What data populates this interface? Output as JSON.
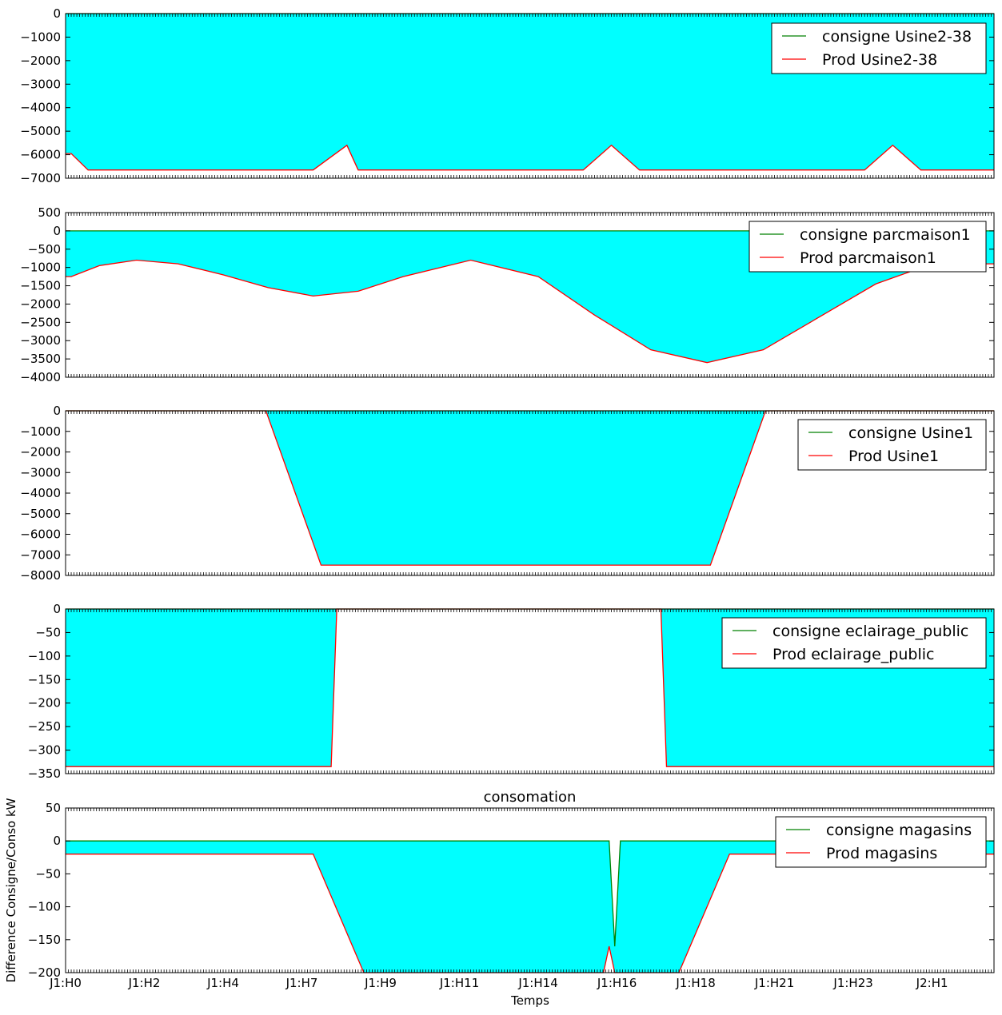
{
  "colors": {
    "fill": "#00ffff",
    "consigne": "#008000",
    "prod": "#ff0000",
    "frame": "#000000"
  },
  "xlabel": "Temps",
  "ylabel": "Difference Consigne/Conso kW",
  "x_tick_labels": [
    "J1:H0",
    "J1:H2",
    "J1:H4",
    "J1:H7",
    "J1:H9",
    "J1:H11",
    "J1:H14",
    "J1:H16",
    "J1:H18",
    "J1:H21",
    "J1:H23",
    "J2:H1"
  ],
  "chart_data": [
    {
      "type": "area",
      "title": "",
      "ylim": [
        -7000,
        0
      ],
      "yticks": [
        0,
        -1000,
        -2000,
        -3000,
        -4000,
        -5000,
        -6000,
        -7000
      ],
      "ytick_labels": [
        "0",
        "−1000",
        "−2000",
        "−3000",
        "−4000",
        "−5000",
        "−6000",
        "−7000"
      ],
      "x_index": [
        0,
        0.5,
        2,
        22,
        25,
        26,
        46,
        48.5,
        51,
        71,
        73.5,
        76,
        82.5
      ],
      "legend_position": "top-right",
      "series": [
        {
          "name": "consigne Usine2-38",
          "values": [
            0,
            0,
            0,
            0,
            0,
            0,
            0,
            0,
            0,
            0,
            0,
            0,
            0
          ]
        },
        {
          "name": "Prod Usine2-38",
          "values": [
            -5950,
            -5950,
            -6650,
            -6650,
            -5600,
            -6650,
            -6650,
            -5600,
            -6650,
            -6650,
            -5600,
            -6650,
            -6650
          ]
        }
      ]
    },
    {
      "type": "area",
      "title": "",
      "ylim": [
        -4000,
        500
      ],
      "yticks": [
        500,
        0,
        -500,
        -1000,
        -1500,
        -2000,
        -2500,
        -3000,
        -3500,
        -4000
      ],
      "ytick_labels": [
        "500",
        "0",
        "−500",
        "−1000",
        "−1500",
        "−2000",
        "−2500",
        "−3000",
        "−3500",
        "−4000"
      ],
      "x_index": [
        0,
        0.5,
        3,
        6.3,
        10,
        14,
        18,
        22,
        26,
        30,
        36,
        42,
        47,
        52,
        57,
        62,
        67,
        72,
        77,
        82.5
      ],
      "legend_position": "top-right",
      "series": [
        {
          "name": "consigne parcmaison1",
          "values": [
            0,
            0,
            0,
            0,
            0,
            0,
            0,
            0,
            0,
            0,
            0,
            0,
            0,
            0,
            0,
            0,
            0,
            0,
            0,
            0
          ]
        },
        {
          "name": "Prod parcmaison1",
          "values": [
            -1250,
            -1250,
            -950,
            -800,
            -900,
            -1200,
            -1550,
            -1780,
            -1650,
            -1250,
            -800,
            -1250,
            -2300,
            -3250,
            -3600,
            -3250,
            -2350,
            -1450,
            -900,
            -900
          ]
        }
      ]
    },
    {
      "type": "area",
      "title": "",
      "ylim": [
        -8000,
        0
      ],
      "yticks": [
        0,
        -1000,
        -2000,
        -3000,
        -4000,
        -5000,
        -6000,
        -7000,
        -8000
      ],
      "ytick_labels": [
        "0",
        "−1000",
        "−2000",
        "−3000",
        "−4000",
        "−5000",
        "−6000",
        "−7000",
        "−8000"
      ],
      "x_index": [
        0,
        17.8,
        22.7,
        57.3,
        62.2,
        82.5
      ],
      "legend_position": "top-right",
      "series": [
        {
          "name": "consigne Usine1",
          "values": [
            0,
            0,
            0,
            0,
            0,
            0
          ]
        },
        {
          "name": "Prod Usine1",
          "values": [
            0,
            0,
            -7500,
            -7500,
            0,
            0
          ]
        }
      ]
    },
    {
      "type": "area",
      "title": "",
      "ylim": [
        -350,
        0
      ],
      "yticks": [
        0,
        -50,
        -100,
        -150,
        -200,
        -250,
        -300,
        -350
      ],
      "ytick_labels": [
        "0",
        "−50",
        "−100",
        "−150",
        "−200",
        "−250",
        "−300",
        "−350"
      ],
      "x_index": [
        0,
        23.6,
        24.1,
        52.9,
        53.4,
        82.5
      ],
      "legend_position": "top-right",
      "series": [
        {
          "name": "consigne eclairage_public",
          "values": [
            0,
            0,
            0,
            0,
            0,
            0
          ]
        },
        {
          "name": "Prod eclairage_public",
          "values": [
            -335,
            -335,
            0,
            0,
            -335,
            -335
          ]
        }
      ]
    },
    {
      "type": "area",
      "title": "consomation",
      "ylim": [
        -200,
        50
      ],
      "yticks": [
        50,
        0,
        -50,
        -100,
        -150,
        -200
      ],
      "ytick_labels": [
        "50",
        "0",
        "−50",
        "−100",
        "−150",
        "−200"
      ],
      "x_index": [
        0,
        0.5,
        22,
        26.5,
        47.8,
        48.3,
        48.8,
        49.3,
        54.5,
        59,
        82.5
      ],
      "legend_position": "top-right",
      "series": [
        {
          "name": "consigne magasins",
          "values": [
            0,
            0,
            0,
            0,
            0,
            0,
            -160,
            0,
            0,
            0,
            0
          ]
        },
        {
          "name": "Prod magasins",
          "values": [
            -20,
            -20,
            -20,
            -200,
            -200,
            -160,
            -200,
            -200,
            -200,
            -20,
            -20
          ]
        }
      ]
    }
  ]
}
